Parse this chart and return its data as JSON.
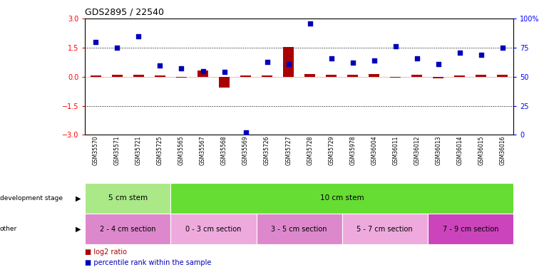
{
  "title": "GDS2895 / 22540",
  "samples": [
    "GSM35570",
    "GSM35571",
    "GSM35721",
    "GSM35725",
    "GSM35565",
    "GSM35567",
    "GSM35568",
    "GSM35569",
    "GSM35726",
    "GSM35727",
    "GSM35728",
    "GSM35729",
    "GSM35978",
    "GSM36004",
    "GSM36011",
    "GSM36012",
    "GSM36013",
    "GSM36014",
    "GSM36015",
    "GSM36016"
  ],
  "log2_ratio": [
    0.08,
    0.1,
    0.12,
    0.07,
    -0.05,
    0.33,
    -0.55,
    0.06,
    0.08,
    1.55,
    0.13,
    0.12,
    0.09,
    0.14,
    -0.04,
    0.09,
    -0.07,
    0.05,
    0.1,
    0.1
  ],
  "percentile": [
    80,
    75,
    85,
    60,
    57,
    55,
    54,
    2,
    63,
    61,
    96,
    66,
    62,
    64,
    76,
    66,
    61,
    71,
    69,
    75
  ],
  "ylim_left": [
    -3,
    3
  ],
  "ylim_right": [
    0,
    100
  ],
  "yticks_left": [
    -3,
    -1.5,
    0,
    1.5,
    3
  ],
  "yticks_right": [
    0,
    25,
    50,
    75,
    100
  ],
  "hlines": [
    1.5,
    -1.5
  ],
  "bar_color": "#aa0000",
  "dot_color": "#0000bb",
  "bg_color": "#ffffff",
  "dev_stage_groups": [
    {
      "label": "5 cm stem",
      "start": 0,
      "end": 4,
      "color": "#aae888"
    },
    {
      "label": "10 cm stem",
      "start": 4,
      "end": 20,
      "color": "#66dd33"
    }
  ],
  "other_groups": [
    {
      "label": "2 - 4 cm section",
      "start": 0,
      "end": 4,
      "color": "#dd88cc"
    },
    {
      "label": "0 - 3 cm section",
      "start": 4,
      "end": 8,
      "color": "#eeaadd"
    },
    {
      "label": "3 - 5 cm section",
      "start": 8,
      "end": 12,
      "color": "#dd88cc"
    },
    {
      "label": "5 - 7 cm section",
      "start": 12,
      "end": 16,
      "color": "#eeaadd"
    },
    {
      "label": "7 - 9 cm section",
      "start": 16,
      "end": 20,
      "color": "#cc44bb"
    }
  ],
  "dev_stage_label": "development stage",
  "other_label": "other",
  "legend_items": [
    {
      "label": "log2 ratio",
      "color": "#aa0000"
    },
    {
      "label": "percentile rank within the sample",
      "color": "#0000bb"
    }
  ]
}
